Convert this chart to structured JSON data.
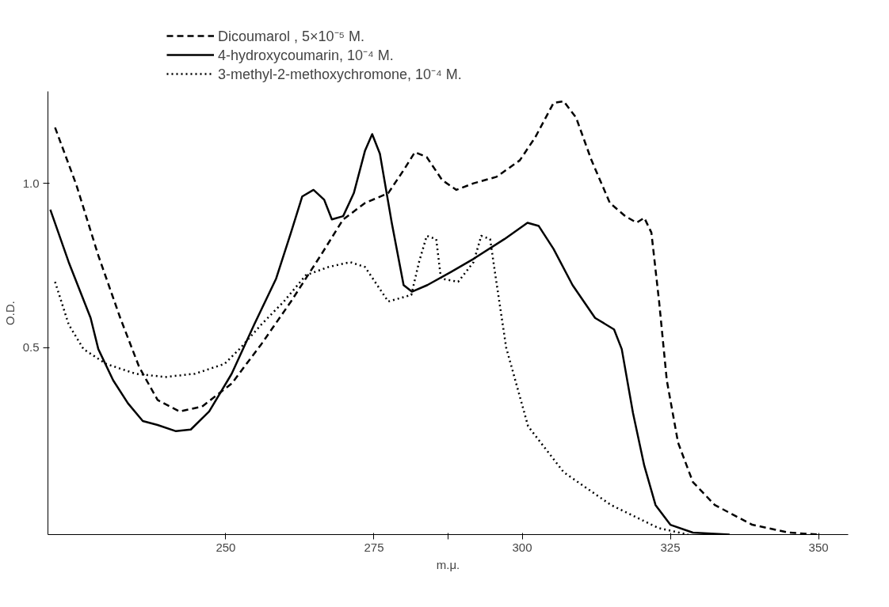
{
  "chart_data": {
    "type": "line",
    "xlabel": "m.μ.",
    "ylabel": "O.D.",
    "xlim": [
      220,
      355
    ],
    "ylim": [
      -0.07,
      1.28
    ],
    "xticks": [
      250,
      275,
      {
        "value": 287.5,
        "label": null
      },
      300,
      325,
      350
    ],
    "yticks": [
      {
        "value": 0.5,
        "label": "0.5"
      },
      {
        "value": 1.0,
        "label": "1.0"
      }
    ],
    "grid": false,
    "legend": "top",
    "marker": "none",
    "series": [
      {
        "name": "Dicoumarol , 5×10⁻⁵ M.",
        "color": "#000000",
        "line_style": "dashed",
        "x": [
          221.2,
          224.8,
          228.5,
          232.2,
          235.4,
          238.5,
          242.2,
          246,
          251,
          256,
          261,
          266,
          269.8,
          273.5,
          277.4,
          280,
          281.9,
          283.9,
          286.5,
          288.9,
          291.8,
          295.7,
          299.6,
          302.2,
          305.3,
          307,
          309.1,
          311.7,
          314.8,
          317.4,
          319.3,
          320.6,
          321.8,
          323.1,
          324.4,
          326.3,
          328.8,
          332.5,
          338.8,
          345,
          350
        ],
        "values": [
          1.17,
          0.995,
          0.78,
          0.59,
          0.44,
          0.34,
          0.305,
          0.32,
          0.39,
          0.51,
          0.64,
          0.78,
          0.89,
          0.94,
          0.97,
          1.04,
          1.095,
          1.08,
          1.01,
          0.98,
          1.0,
          1.02,
          1.07,
          1.14,
          1.245,
          1.25,
          1.2,
          1.07,
          0.94,
          0.9,
          0.88,
          0.895,
          0.85,
          0.64,
          0.4,
          0.21,
          0.09,
          0.02,
          -0.04,
          -0.064,
          -0.07
        ]
      },
      {
        "name": "4-hydroxycoumarin, 10⁻⁴ M.",
        "color": "#000000",
        "line_style": "solid",
        "x": [
          220.4,
          223.5,
          227.2,
          228.5,
          231,
          233.5,
          236,
          238.5,
          241.6,
          244.1,
          247.2,
          251,
          254.8,
          258.5,
          261,
          262.9,
          264.8,
          266.6,
          267.9,
          269.8,
          271.6,
          273.5,
          274.7,
          276,
          278,
          280,
          281.4,
          284,
          288,
          291.8,
          297,
          300.9,
          302.8,
          305.3,
          308.5,
          312.3,
          315.5,
          316.8,
          318.7,
          320.6,
          322.5,
          325,
          328.8,
          335
        ],
        "values": [
          0.92,
          0.76,
          0.59,
          0.495,
          0.4,
          0.33,
          0.276,
          0.264,
          0.245,
          0.25,
          0.305,
          0.42,
          0.57,
          0.71,
          0.85,
          0.96,
          0.98,
          0.95,
          0.89,
          0.9,
          0.97,
          1.1,
          1.15,
          1.09,
          0.88,
          0.69,
          0.67,
          0.69,
          0.73,
          0.77,
          0.83,
          0.88,
          0.87,
          0.8,
          0.69,
          0.59,
          0.555,
          0.495,
          0.3,
          0.14,
          0.02,
          -0.04,
          -0.064,
          -0.07
        ]
      },
      {
        "name": "3-methyl-2-methoxychromone, 10⁻⁴ M.",
        "color": "#000000",
        "line_style": "dotted",
        "x": [
          221.2,
          223.5,
          226,
          229.8,
          234.8,
          239.8,
          244.8,
          249.8,
          252.3,
          256,
          259.8,
          263.5,
          267.3,
          271,
          273.5,
          277.4,
          281.3,
          282.6,
          283.9,
          285.5,
          286.3,
          289.2,
          291.8,
          293.1,
          294.6,
          295.4,
          297.3,
          301,
          307,
          315,
          323,
          328
        ],
        "values": [
          0.7,
          0.57,
          0.495,
          0.45,
          0.42,
          0.41,
          0.42,
          0.45,
          0.495,
          0.57,
          0.64,
          0.72,
          0.745,
          0.76,
          0.745,
          0.64,
          0.66,
          0.76,
          0.84,
          0.83,
          0.71,
          0.7,
          0.76,
          0.84,
          0.83,
          0.73,
          0.5,
          0.26,
          0.12,
          0.02,
          -0.05,
          -0.07
        ]
      }
    ]
  }
}
